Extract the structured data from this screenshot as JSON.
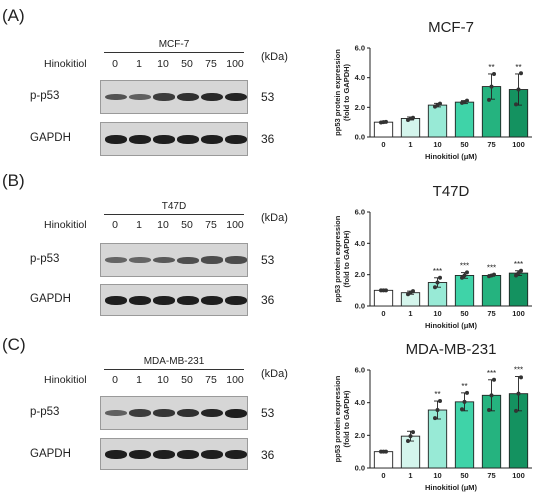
{
  "panels": [
    {
      "label": "(A)",
      "cell_line": "MCF-7",
      "treatment_label": "Hinokitiol",
      "concentrations": [
        "0",
        "1",
        "10",
        "50",
        "75",
        "100"
      ],
      "kda_label": "(kDa)",
      "rows": [
        {
          "name": "p-p53",
          "mw": "53",
          "intensity": [
            0.55,
            0.45,
            0.75,
            0.85,
            0.9,
            0.95
          ]
        },
        {
          "name": "GAPDH",
          "mw": "36",
          "intensity": [
            1,
            1,
            1,
            1,
            1,
            1
          ]
        }
      ]
    },
    {
      "label": "(B)",
      "cell_line": "T47D",
      "treatment_label": "Hinokitiol",
      "concentrations": [
        "0",
        "1",
        "10",
        "50",
        "75",
        "100"
      ],
      "kda_label": "(kDa)",
      "rows": [
        {
          "name": "p-p53",
          "mw": "53",
          "intensity": [
            0.4,
            0.4,
            0.5,
            0.6,
            0.62,
            0.62
          ]
        },
        {
          "name": "GAPDH",
          "mw": "36",
          "intensity": [
            1,
            1,
            1,
            1,
            1,
            1
          ]
        }
      ]
    },
    {
      "label": "(C)",
      "cell_line": "MDA-MB-231",
      "treatment_label": "Hinokitiol",
      "concentrations": [
        "0",
        "1",
        "10",
        "50",
        "75",
        "100"
      ],
      "kda_label": "(kDa)",
      "rows": [
        {
          "name": "p-p53",
          "mw": "53",
          "intensity": [
            0.45,
            0.75,
            0.8,
            0.85,
            0.95,
            1.0
          ]
        },
        {
          "name": "GAPDH",
          "mw": "36",
          "intensity": [
            1,
            1,
            1,
            1,
            1,
            1
          ]
        }
      ]
    }
  ],
  "colors": [
    "#ffffff",
    "#d4f5ec",
    "#98ead6",
    "#3fd3a8",
    "#25b37f",
    "#149260"
  ],
  "chart_data": [
    {
      "type": "bar",
      "title": "MCF-7",
      "xlabel": "Hinokitiol (μM)",
      "ylabel": [
        "pp53 protein expression",
        "(fold to GAPDH)"
      ],
      "categories": [
        "0",
        "1",
        "10",
        "50",
        "75",
        "100"
      ],
      "values": [
        1.0,
        1.25,
        2.15,
        2.35,
        3.4,
        3.2
      ],
      "errors": [
        0.05,
        0.1,
        0.12,
        0.1,
        0.85,
        1.05
      ],
      "points": [
        [
          0.98,
          1.0,
          1.02
        ],
        [
          1.15,
          1.25,
          1.3
        ],
        [
          2.05,
          2.15,
          2.25
        ],
        [
          2.3,
          2.35,
          2.45
        ],
        [
          2.5,
          3.4,
          4.25
        ],
        [
          2.2,
          3.2,
          4.3
        ]
      ],
      "significance": [
        "",
        "",
        "",
        "",
        "**",
        "**"
      ],
      "ylim": [
        0,
        6
      ],
      "yticks": [
        "0.0",
        "2.0",
        "4.0",
        "6.0"
      ]
    },
    {
      "type": "bar",
      "title": "T47D",
      "xlabel": "Hinokitiol (μM)",
      "ylabel": [
        "pp53 protein expression",
        "(fold to GAPDH)"
      ],
      "categories": [
        "0",
        "1",
        "10",
        "50",
        "75",
        "100"
      ],
      "values": [
        1.0,
        0.85,
        1.5,
        1.95,
        1.95,
        2.1
      ],
      "errors": [
        0.03,
        0.1,
        0.3,
        0.18,
        0.05,
        0.15
      ],
      "points": [
        [
          1.0,
          1.0,
          1.0
        ],
        [
          0.75,
          0.85,
          0.95
        ],
        [
          1.2,
          1.5,
          1.8
        ],
        [
          1.8,
          1.95,
          2.15
        ],
        [
          1.9,
          1.95,
          2.0
        ],
        [
          1.95,
          2.1,
          2.25
        ]
      ],
      "significance": [
        "",
        "",
        "***",
        "***",
        "***",
        "***"
      ],
      "ylim": [
        0,
        6
      ],
      "yticks": [
        "0.0",
        "2.0",
        "4.0",
        "6.0"
      ]
    },
    {
      "type": "bar",
      "title": "MDA-MB-231",
      "xlabel": "Hinokitiol (μM)",
      "ylabel": [
        "pp53 protein expression",
        "(fold to GAPDH)"
      ],
      "categories": [
        "0",
        "1",
        "10",
        "50",
        "75",
        "100"
      ],
      "values": [
        1.0,
        1.95,
        3.55,
        4.05,
        4.45,
        4.55
      ],
      "errors": [
        0.03,
        0.3,
        0.55,
        0.55,
        0.95,
        1.05
      ],
      "points": [
        [
          1.0,
          1.0,
          1.0
        ],
        [
          1.65,
          1.95,
          2.2
        ],
        [
          3.05,
          3.55,
          4.1
        ],
        [
          3.6,
          4.05,
          4.6
        ],
        [
          3.55,
          4.45,
          5.4
        ],
        [
          3.5,
          4.55,
          5.55
        ]
      ],
      "significance": [
        "",
        "",
        "**",
        "**",
        "***",
        "***"
      ],
      "ylim": [
        0,
        6
      ],
      "yticks": [
        "0.0",
        "2.0",
        "4.0",
        "6.0"
      ]
    }
  ]
}
